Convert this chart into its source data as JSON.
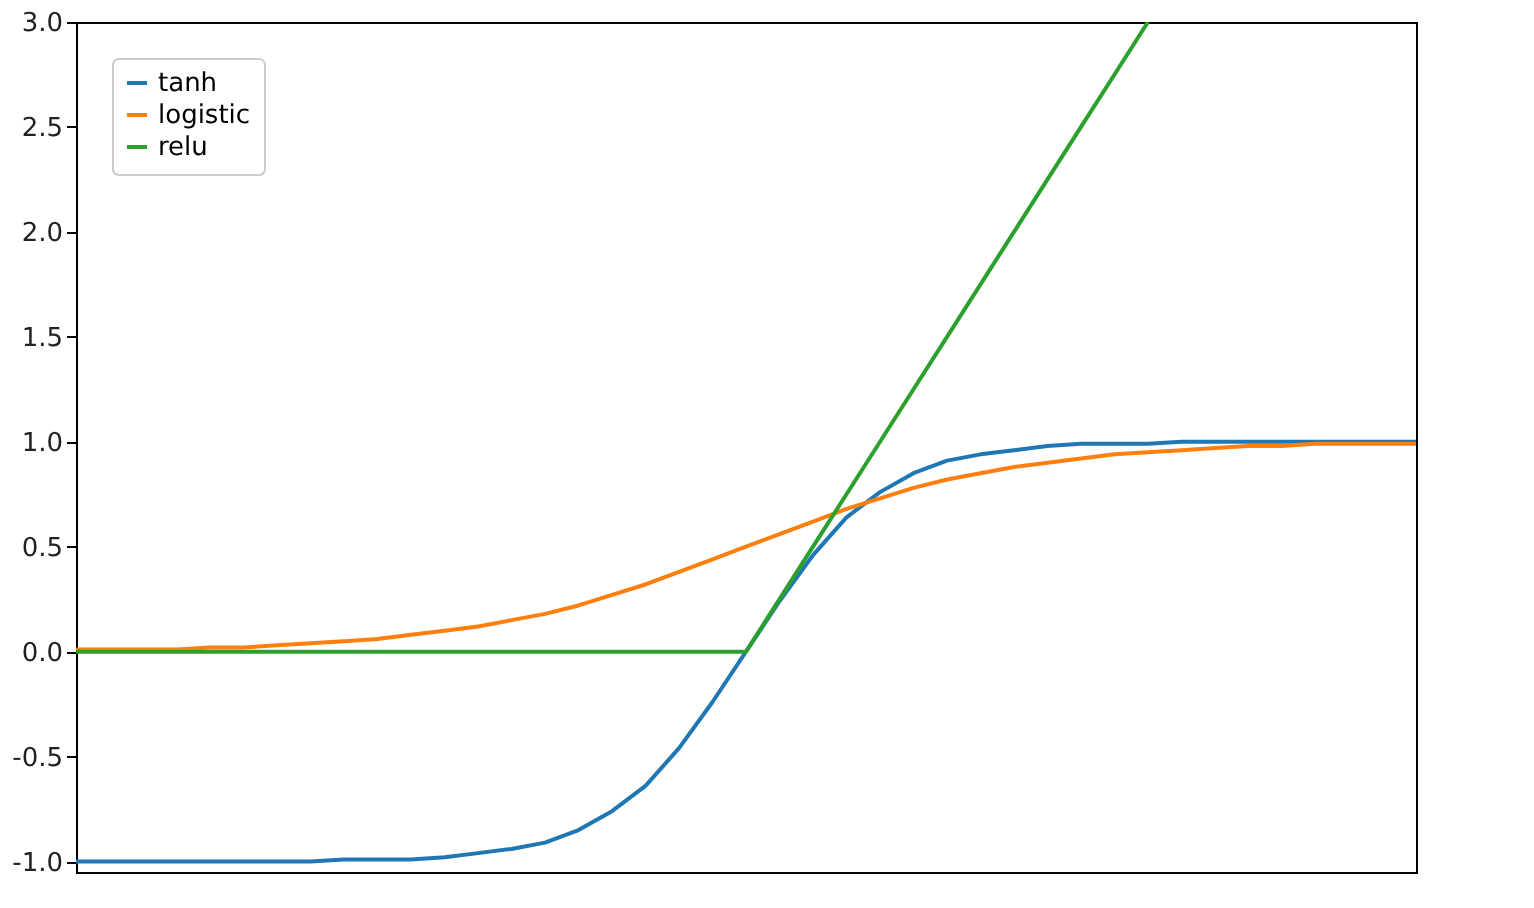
{
  "chart_data": {
    "type": "line",
    "categories": [
      null,
      null,
      null,
      null,
      null,
      null,
      null,
      null,
      null,
      null,
      null,
      null,
      null,
      null,
      null,
      null,
      null,
      null,
      null,
      null,
      null,
      null,
      null,
      null,
      null,
      null,
      null,
      null,
      null,
      null,
      null,
      null,
      null,
      null,
      null,
      null,
      null,
      null,
      null,
      null,
      null
    ],
    "series": [
      {
        "name": "tanh",
        "color": "#1f77b4",
        "values": [
          -1.0,
          -1.0,
          -1.0,
          -1.0,
          -1.0,
          -1.0,
          -1.0,
          -1.0,
          -0.99,
          -0.99,
          -0.99,
          -0.98,
          -0.96,
          -0.94,
          -0.91,
          -0.85,
          -0.76,
          -0.64,
          -0.46,
          -0.24,
          0,
          0.24,
          0.46,
          0.64,
          0.76,
          0.85,
          0.91,
          0.94,
          0.96,
          0.98,
          0.99,
          0.99,
          0.99,
          1.0,
          1.0,
          1.0,
          1.0,
          1.0,
          1.0,
          1.0,
          1.0
        ]
      },
      {
        "name": "logistic",
        "color": "#ff7f0e",
        "values": [
          0.01,
          0.01,
          0.01,
          0.01,
          0.02,
          0.02,
          0.03,
          0.04,
          0.05,
          0.06,
          0.08,
          0.1,
          0.12,
          0.15,
          0.18,
          0.22,
          0.27,
          0.32,
          0.38,
          0.44,
          0.5,
          0.56,
          0.62,
          0.68,
          0.73,
          0.78,
          0.82,
          0.85,
          0.88,
          0.9,
          0.92,
          0.94,
          0.95,
          0.96,
          0.97,
          0.98,
          0.98,
          0.99,
          0.99,
          0.99,
          0.99
        ]
      },
      {
        "name": "relu",
        "color": "#2ca02c",
        "values": [
          0,
          0,
          0,
          0,
          0,
          0,
          0,
          0,
          0,
          0,
          0,
          0,
          0,
          0,
          0,
          0,
          0,
          0,
          0,
          0,
          0,
          0.25,
          0.5,
          0.75,
          1.0,
          1.25,
          1.5,
          1.75,
          2.0,
          2.25,
          2.5,
          2.75,
          3.0,
          null,
          null,
          null,
          null,
          null,
          null,
          null,
          null
        ]
      }
    ],
    "ylim": [
      -1.05,
      3.0
    ],
    "yticks": [
      {
        "value": -1.0,
        "label": "-1.0"
      },
      {
        "value": -0.5,
        "label": "-0.5"
      },
      {
        "value": 0,
        "label": "0.0"
      },
      {
        "value": 0.5,
        "label": "0.5"
      },
      {
        "value": 1.0,
        "label": "1.0"
      },
      {
        "value": 1.5,
        "label": "1.5"
      },
      {
        "value": 2.0,
        "label": "2.0"
      },
      {
        "value": 2.5,
        "label": "2.5"
      },
      {
        "value": 3.0,
        "label": "3.0"
      }
    ],
    "tick_labels": "y",
    "grid": false,
    "legend": "top left",
    "line_style": "solid",
    "marker": "none"
  }
}
